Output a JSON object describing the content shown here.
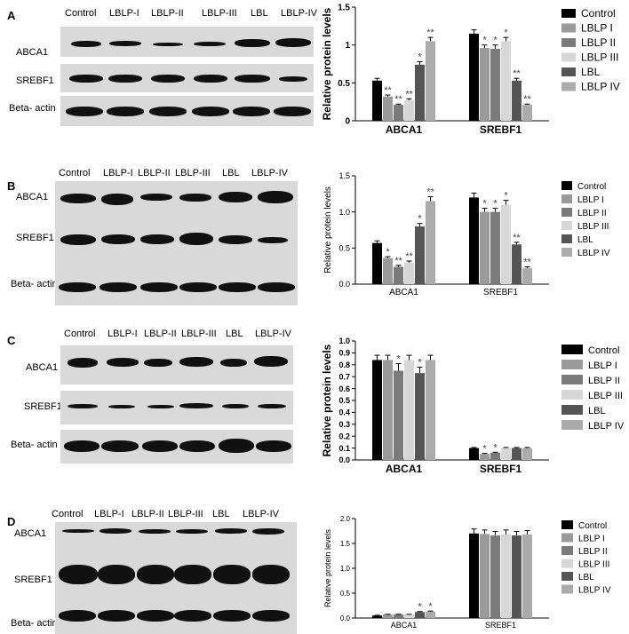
{
  "panels": [
    {
      "letter": "A",
      "lanes": [
        "Control",
        "LBLP-I",
        "LBLP-II",
        "LBLP-III",
        "LBL",
        "LBLP-IV"
      ],
      "rows": [
        "ABCA1",
        "SREBF1",
        "Beta- actin"
      ]
    },
    {
      "letter": "B",
      "lanes": [
        "Control",
        "LBLP-I",
        "LBLP-II",
        "LBLP-III",
        "LBL",
        "LBLP-IV"
      ],
      "rows": [
        "ABCA1",
        "SREBF1",
        "Beta- actin"
      ]
    },
    {
      "letter": "C",
      "lanes": [
        "Control",
        "LBLP-I",
        "LBLP-II",
        "LBLP-III",
        "LBL",
        "LBLP-IV"
      ],
      "rows": [
        "ABCA1",
        "SREBF1",
        "Beta- actin"
      ]
    },
    {
      "letter": "D",
      "lanes": [
        "Control",
        "LBLP-I",
        "LBLP-II",
        "LBLP-III",
        "LBL",
        "LBLP-IV"
      ],
      "rows": [
        "ABCA1",
        "SREBF1",
        "Beta- actin"
      ]
    }
  ],
  "colors": {
    "Control": "#000000",
    "LBLP I": "#9a9a9a",
    "LBLP II": "#7a7a7a",
    "LBLP III": "#d6d6d6",
    "LBL": "#555555",
    "LBLP IV": "#ababab"
  },
  "chart_data": [
    {
      "type": "bar",
      "panel": "A",
      "ylabel": "Relative protein levels",
      "ylim": [
        0,
        1.5
      ],
      "yticks": [
        "0",
        "0.5",
        "1",
        "1.5"
      ],
      "categories": [
        "ABCA1",
        "SREBF1"
      ],
      "legend_position": "right",
      "series": [
        {
          "name": "Control",
          "values": [
            0.53,
            1.15
          ],
          "errors": [
            0.03,
            0.05
          ],
          "sig": [
            "",
            ""
          ]
        },
        {
          "name": "LBLP I",
          "values": [
            0.32,
            0.96
          ],
          "errors": [
            0.02,
            0.04
          ],
          "sig": [
            "**",
            "*"
          ]
        },
        {
          "name": "LBLP II",
          "values": [
            0.21,
            0.95
          ],
          "errors": [
            0.01,
            0.05
          ],
          "sig": [
            "**",
            "*"
          ]
        },
        {
          "name": "LBLP III",
          "values": [
            0.27,
            1.05
          ],
          "errors": [
            0.02,
            0.05
          ],
          "sig": [
            "**",
            "*"
          ]
        },
        {
          "name": "LBL",
          "values": [
            0.74,
            0.53
          ],
          "errors": [
            0.04,
            0.03
          ],
          "sig": [
            "*",
            "**"
          ]
        },
        {
          "name": "LBLP IV",
          "values": [
            1.05,
            0.21
          ],
          "errors": [
            0.05,
            0.01
          ],
          "sig": [
            "**",
            "**"
          ]
        }
      ]
    },
    {
      "type": "bar",
      "panel": "B",
      "ylabel": "Relative protein levels",
      "ylim": [
        0,
        1.5
      ],
      "yticks": [
        "0.0",
        "0.5",
        "1.0",
        "1.5"
      ],
      "categories": [
        "ABCA1",
        "SREBF1"
      ],
      "legend_position": "right",
      "series": [
        {
          "name": "Control",
          "values": [
            0.57,
            1.2
          ],
          "errors": [
            0.03,
            0.06
          ],
          "sig": [
            "",
            ""
          ]
        },
        {
          "name": "LBLP I",
          "values": [
            0.36,
            1.0
          ],
          "errors": [
            0.02,
            0.05
          ],
          "sig": [
            "*",
            "*"
          ]
        },
        {
          "name": "LBLP II",
          "values": [
            0.24,
            1.0
          ],
          "errors": [
            0.02,
            0.05
          ],
          "sig": [
            "**",
            "*"
          ]
        },
        {
          "name": "LBLP III",
          "values": [
            0.3,
            1.1
          ],
          "errors": [
            0.02,
            0.06
          ],
          "sig": [
            "**",
            "*"
          ]
        },
        {
          "name": "LBL",
          "values": [
            0.8,
            0.55
          ],
          "errors": [
            0.04,
            0.03
          ],
          "sig": [
            "*",
            "**"
          ]
        },
        {
          "name": "LBLP IV",
          "values": [
            1.15,
            0.22
          ],
          "errors": [
            0.06,
            0.02
          ],
          "sig": [
            "**",
            "**"
          ]
        }
      ]
    },
    {
      "type": "bar",
      "panel": "C",
      "ylabel": "Relative protein levels",
      "ylim": [
        0,
        1.0
      ],
      "yticks": [
        "0.0",
        "0.1",
        "0.2",
        "0.3",
        "0.4",
        "0.5",
        "0.6",
        "0.7",
        "0.8",
        "0.9",
        "1.0"
      ],
      "categories": [
        "ABCA1",
        "SREBF1"
      ],
      "legend_position": "right",
      "series": [
        {
          "name": "Control",
          "values": [
            0.84,
            0.1
          ],
          "errors": [
            0.04,
            0.005
          ],
          "sig": [
            "",
            ""
          ]
        },
        {
          "name": "LBLP I",
          "values": [
            0.84,
            0.05
          ],
          "errors": [
            0.04,
            0.005
          ],
          "sig": [
            "",
            "*"
          ]
        },
        {
          "name": "LBLP II",
          "values": [
            0.75,
            0.06
          ],
          "errors": [
            0.06,
            0.005
          ],
          "sig": [
            "*",
            "*"
          ]
        },
        {
          "name": "LBLP III",
          "values": [
            0.84,
            0.1
          ],
          "errors": [
            0.04,
            0.005
          ],
          "sig": [
            "",
            ""
          ]
        },
        {
          "name": "LBL",
          "values": [
            0.73,
            0.1
          ],
          "errors": [
            0.05,
            0.005
          ],
          "sig": [
            "*",
            ""
          ]
        },
        {
          "name": "LBLP IV",
          "values": [
            0.84,
            0.1
          ],
          "errors": [
            0.04,
            0.005
          ],
          "sig": [
            "",
            ""
          ]
        }
      ]
    },
    {
      "type": "bar",
      "panel": "D",
      "ylabel": "Relative protein levels",
      "ylim": [
        0,
        2.0
      ],
      "yticks": [
        "0.0",
        "0.5",
        "1.0",
        "1.5",
        "2.0"
      ],
      "categories": [
        "ABCA1",
        "SREBF1"
      ],
      "legend_position": "right",
      "series": [
        {
          "name": "Control",
          "values": [
            0.05,
            1.7
          ],
          "errors": [
            0.005,
            0.09
          ],
          "sig": [
            "",
            ""
          ]
        },
        {
          "name": "LBLP I",
          "values": [
            0.07,
            1.69
          ],
          "errors": [
            0.005,
            0.08
          ],
          "sig": [
            "",
            ""
          ]
        },
        {
          "name": "LBLP II",
          "values": [
            0.07,
            1.66
          ],
          "errors": [
            0.005,
            0.08
          ],
          "sig": [
            "",
            ""
          ]
        },
        {
          "name": "LBLP III",
          "values": [
            0.07,
            1.68
          ],
          "errors": [
            0.005,
            0.09
          ],
          "sig": [
            "",
            ""
          ]
        },
        {
          "name": "LBL",
          "values": [
            0.12,
            1.66
          ],
          "errors": [
            0.01,
            0.08
          ],
          "sig": [
            "*",
            ""
          ]
        },
        {
          "name": "LBLP IV",
          "values": [
            0.13,
            1.68
          ],
          "errors": [
            0.01,
            0.08
          ],
          "sig": [
            "*",
            ""
          ]
        }
      ]
    }
  ]
}
